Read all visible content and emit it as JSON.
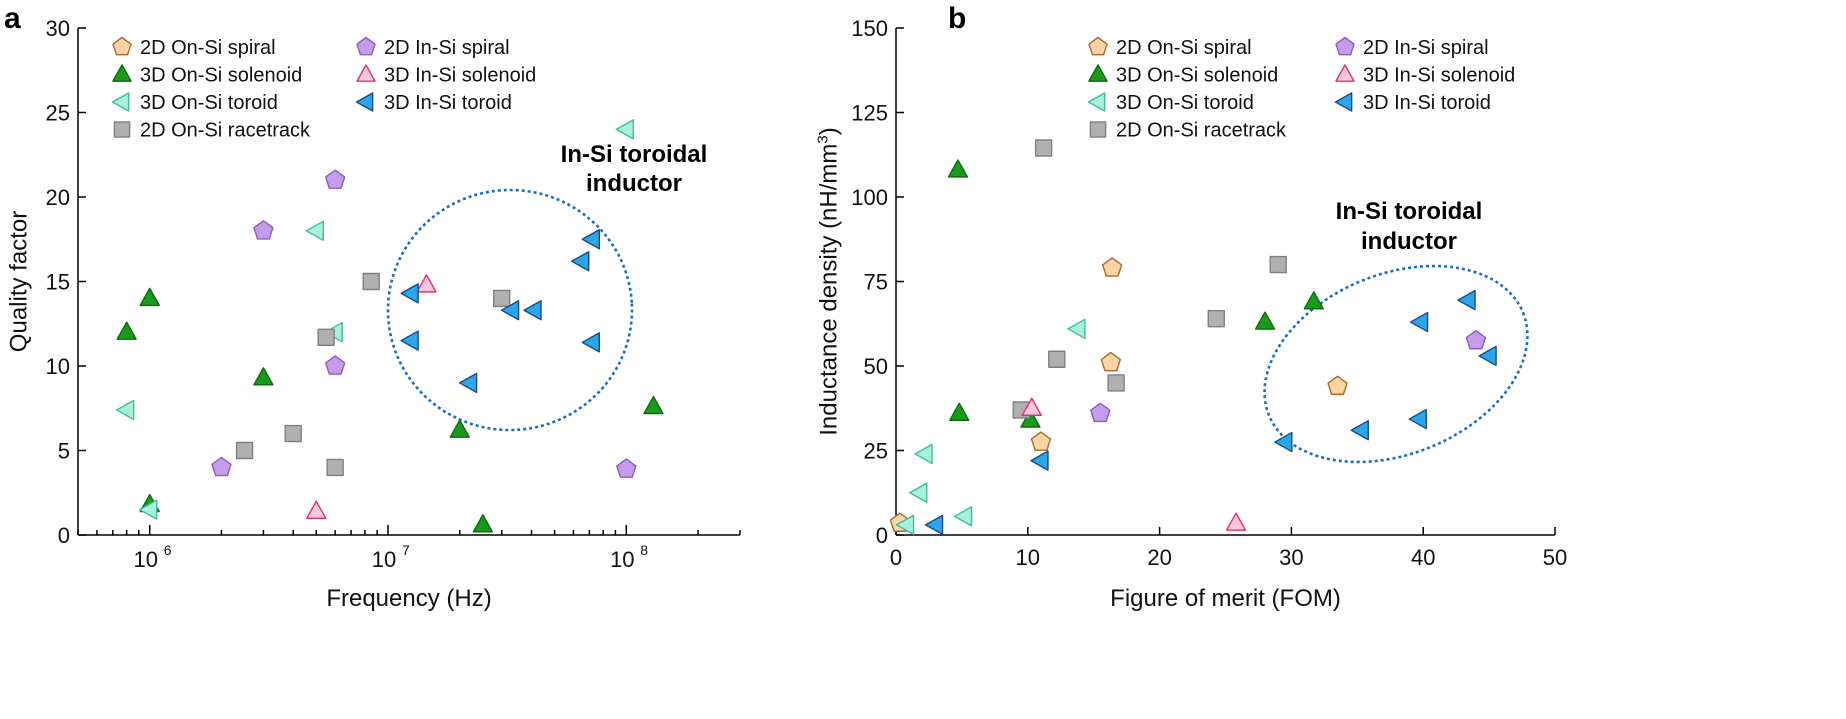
{
  "series_styles": {
    "2D On-Si spiral": {
      "shape": "pentagon",
      "fill": "#fbd5a5",
      "stroke": "#a8692a"
    },
    "2D In-Si spiral": {
      "shape": "pentagon",
      "fill": "#c59ce8",
      "stroke": "#8e5bc0"
    },
    "3D On-Si solenoid": {
      "shape": "triangle-up",
      "fill": "#1a9a1a",
      "stroke": "#0b6a0b"
    },
    "3D In-Si solenoid": {
      "shape": "triangle-up",
      "fill": "#ffc8da",
      "stroke": "#e0307a"
    },
    "3D On-Si toroid": {
      "shape": "triangle-left",
      "fill": "#a9f0dc",
      "stroke": "#3cc09a"
    },
    "3D In-Si toroid": {
      "shape": "triangle-left",
      "fill": "#2aa7e8",
      "stroke": "#1a4a8a"
    },
    "2D On-Si racetrack": {
      "shape": "square",
      "fill": "#b0b0b0",
      "stroke": "#808080"
    }
  },
  "chart_data": [
    {
      "panel": "a",
      "type": "scatter",
      "xscale": "log",
      "xlabel": "Frequency (Hz)",
      "ylabel": "Quality factor",
      "xlim": [
        500000,
        300000000
      ],
      "ylim": [
        0,
        30
      ],
      "xticks": [
        {
          "base": "10",
          "exp": "6"
        },
        {
          "base": "10",
          "exp": "7"
        },
        {
          "base": "10",
          "exp": "8"
        }
      ],
      "yticks": [
        "0",
        "5",
        "10",
        "15",
        "20",
        "25",
        "30"
      ],
      "legend": {
        "columns": [
          [
            "2D On-Si spiral",
            "3D On-Si solenoid",
            "3D On-Si toroid",
            "2D On-Si racetrack"
          ],
          [
            "2D In-Si spiral",
            "3D In-Si solenoid",
            "3D In-Si toroid"
          ]
        ]
      },
      "annotation": {
        "lines": [
          "In-Si toroidal",
          "inductor"
        ]
      },
      "series": [
        {
          "name": "2D On-Si spiral",
          "points": []
        },
        {
          "name": "3D On-Si solenoid",
          "points": [
            [
              800000,
              12
            ],
            [
              1000000,
              14
            ],
            [
              1000000,
              1.8
            ],
            [
              3000000,
              9.3
            ],
            [
              20000000,
              6.2
            ],
            [
              25000000,
              0.6
            ],
            [
              130000000,
              7.6
            ]
          ]
        },
        {
          "name": "3D On-Si toroid",
          "points": [
            [
              800000,
              7.4
            ],
            [
              1000000,
              1.5
            ],
            [
              5000000,
              18
            ],
            [
              6000000,
              12
            ],
            [
              100000000,
              24
            ]
          ]
        },
        {
          "name": "2D On-Si racetrack",
          "points": [
            [
              2500000,
              5
            ],
            [
              4000000,
              6
            ],
            [
              5500000,
              11.7
            ],
            [
              6000000,
              4
            ],
            [
              8500000,
              15
            ],
            [
              30000000,
              14
            ]
          ]
        },
        {
          "name": "2D In-Si spiral",
          "points": [
            [
              2000000,
              4
            ],
            [
              3000000,
              18
            ],
            [
              6000000,
              21
            ],
            [
              6000000,
              10
            ],
            [
              100000000,
              3.9
            ]
          ]
        },
        {
          "name": "3D In-Si solenoid",
          "points": [
            [
              5000000,
              1.4
            ],
            [
              14500000,
              14.8
            ]
          ]
        },
        {
          "name": "3D In-Si toroid",
          "points": [
            [
              12500000,
              14.3
            ],
            [
              12500000,
              11.5
            ],
            [
              22000000,
              9
            ],
            [
              33000000,
              13.3
            ],
            [
              41000000,
              13.3
            ],
            [
              65000000,
              16.2
            ],
            [
              72000000,
              17.5
            ],
            [
              72000000,
              11.4
            ]
          ]
        }
      ]
    },
    {
      "panel": "b",
      "type": "scatter",
      "xscale": "linear",
      "xlabel": "Figure of merit (FOM)",
      "ylabel": "Inductance density (nH/mm",
      "ylabel_sup": "3",
      "ylabel_end": ")",
      "xlim": [
        0,
        50
      ],
      "ylim": [
        0,
        150
      ],
      "xticks": [
        "0",
        "10",
        "20",
        "30",
        "40",
        "50"
      ],
      "yticks": [
        "0",
        "25",
        "50",
        "75",
        "100",
        "125",
        "150"
      ],
      "legend": {
        "columns": [
          [
            "2D On-Si spiral",
            "3D On-Si solenoid",
            "3D On-Si toroid",
            "2D On-Si racetrack"
          ],
          [
            "2D In-Si spiral",
            "3D In-Si solenoid",
            "3D In-Si toroid"
          ]
        ]
      },
      "annotation": {
        "lines": [
          "In-Si toroidal",
          "inductor"
        ]
      },
      "series": [
        {
          "name": "2D On-Si spiral",
          "points": [
            [
              0.3,
              3.5
            ],
            [
              11,
              27.5
            ],
            [
              16.3,
              51
            ],
            [
              16.4,
              79
            ],
            [
              33.5,
              44
            ]
          ]
        },
        {
          "name": "3D On-Si solenoid",
          "points": [
            [
              4.7,
              108
            ],
            [
              4.8,
              36
            ],
            [
              10.2,
              34
            ],
            [
              28,
              63
            ],
            [
              31.7,
              69
            ]
          ]
        },
        {
          "name": "3D On-Si toroid",
          "points": [
            [
              0.8,
              3
            ],
            [
              1.8,
              12.5
            ],
            [
              2.2,
              24
            ],
            [
              5.2,
              5.5
            ],
            [
              13.8,
              61
            ]
          ]
        },
        {
          "name": "2D On-Si racetrack",
          "points": [
            [
              9.5,
              37
            ],
            [
              11.2,
              114.5
            ],
            [
              12.2,
              52
            ],
            [
              16.7,
              45
            ],
            [
              24.3,
              64
            ],
            [
              29,
              80
            ]
          ]
        },
        {
          "name": "2D In-Si spiral",
          "points": [
            [
              15.5,
              36
            ],
            [
              44,
              57.5
            ]
          ]
        },
        {
          "name": "3D In-Si solenoid",
          "points": [
            [
              10.3,
              37.5
            ],
            [
              25.8,
              3.5
            ]
          ]
        },
        {
          "name": "3D In-Si toroid",
          "points": [
            [
              3,
              3
            ],
            [
              11,
              22
            ],
            [
              29.5,
              27.5
            ],
            [
              35.3,
              31
            ],
            [
              39.7,
              34.3
            ],
            [
              39.8,
              63
            ],
            [
              43.4,
              69.5
            ],
            [
              45,
              53
            ]
          ]
        }
      ]
    }
  ]
}
